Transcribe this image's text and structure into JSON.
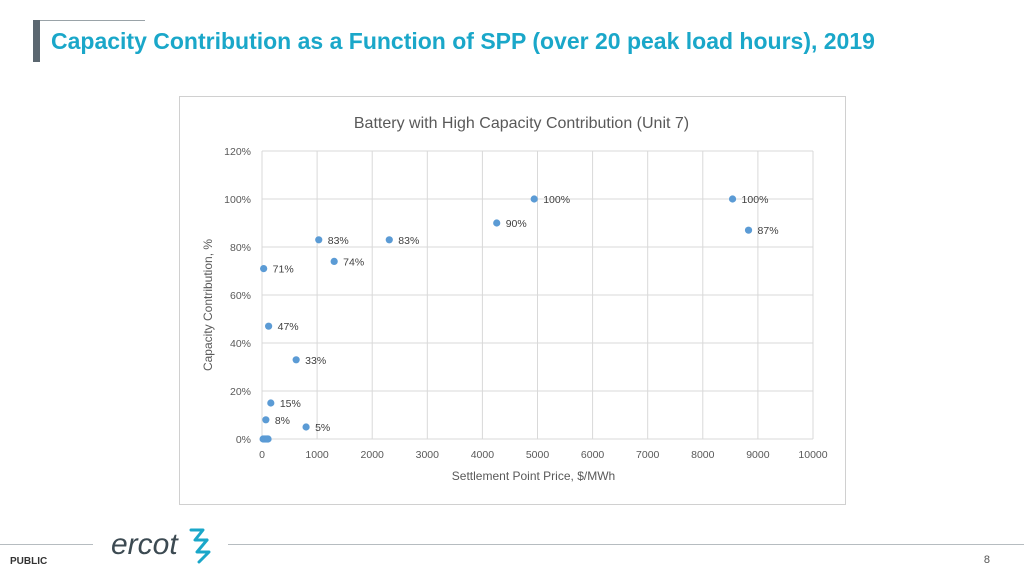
{
  "slide": {
    "title": "Capacity Contribution as a Function of SPP (over 20 peak load hours), 2019",
    "footer_label": "PUBLIC",
    "page_number": "8",
    "logo_text": "ercot"
  },
  "chart_data": {
    "type": "scatter",
    "title": "Battery with High Capacity Contribution (Unit 7)",
    "xlabel": "Settlement Point Price, $/MWh",
    "ylabel": "Capacity Contribution, %",
    "xlim": [
      0,
      10000
    ],
    "ylim": [
      0,
      120
    ],
    "x_ticks": [
      0,
      1000,
      2000,
      3000,
      4000,
      5000,
      6000,
      7000,
      8000,
      9000,
      10000
    ],
    "y_ticks": [
      0,
      20,
      40,
      60,
      80,
      100,
      120
    ],
    "y_tick_labels": [
      "0%",
      "20%",
      "40%",
      "60%",
      "80%",
      "100%",
      "120%"
    ],
    "grid": true,
    "marker_color": "#5b9bd5",
    "points": [
      {
        "x": 30,
        "y": 71,
        "label": "71%"
      },
      {
        "x": 120,
        "y": 47,
        "label": "47%"
      },
      {
        "x": 620,
        "y": 33,
        "label": "33%"
      },
      {
        "x": 160,
        "y": 15,
        "label": "15%"
      },
      {
        "x": 70,
        "y": 8,
        "label": "8%"
      },
      {
        "x": 800,
        "y": 5,
        "label": "5%"
      },
      {
        "x": 1030,
        "y": 83,
        "label": "83%"
      },
      {
        "x": 1310,
        "y": 74,
        "label": "74%"
      },
      {
        "x": 2310,
        "y": 83,
        "label": "83%"
      },
      {
        "x": 4260,
        "y": 90,
        "label": "90%"
      },
      {
        "x": 4940,
        "y": 100,
        "label": "100%"
      },
      {
        "x": 8540,
        "y": 100,
        "label": "100%"
      },
      {
        "x": 8830,
        "y": 87,
        "label": "87%"
      },
      {
        "x": 20,
        "y": 0,
        "label": ""
      },
      {
        "x": 40,
        "y": 0,
        "label": ""
      },
      {
        "x": 60,
        "y": 0,
        "label": ""
      },
      {
        "x": 80,
        "y": 0,
        "label": ""
      },
      {
        "x": 100,
        "y": 0,
        "label": ""
      },
      {
        "x": 110,
        "y": 0,
        "label": ""
      }
    ]
  }
}
